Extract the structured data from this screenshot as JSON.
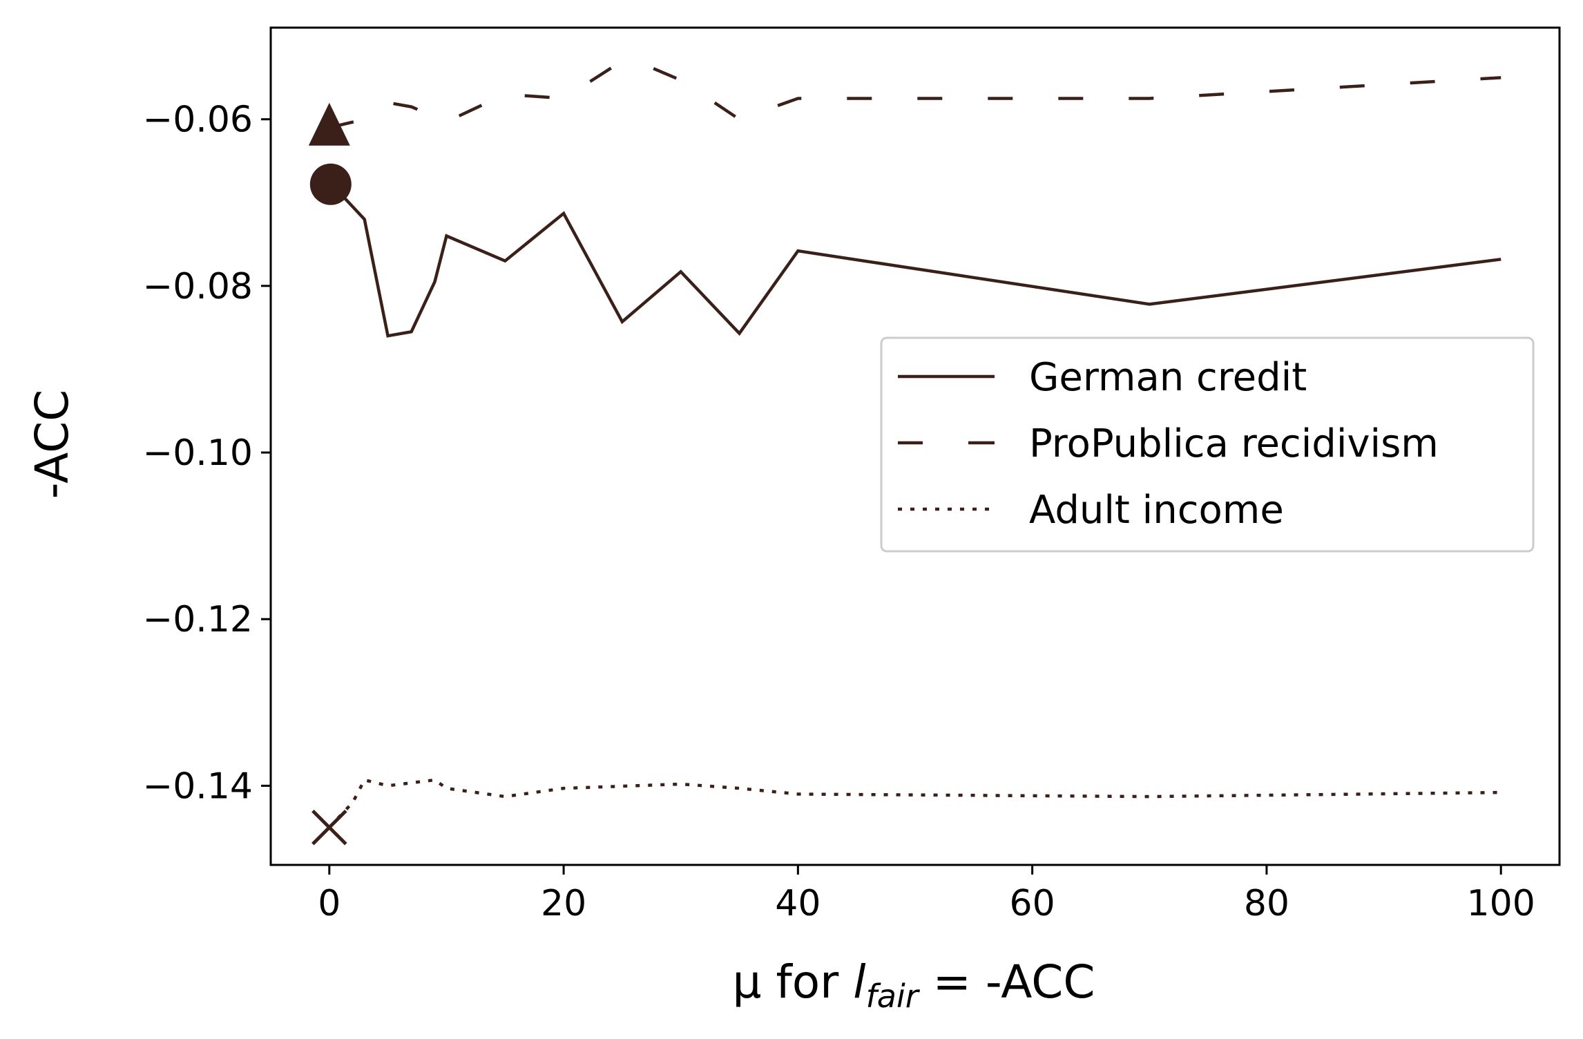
{
  "chart_data": {
    "type": "line",
    "xlabel_prefix": "μ for ",
    "xlabel_l": "l",
    "xlabel_sub": "fair",
    "xlabel_suffix": " = -ACC",
    "ylabel": "-ACC",
    "xlim": [
      -5,
      105
    ],
    "ylim": [
      -0.1495,
      -0.049
    ],
    "x_ticks": [
      0,
      20,
      40,
      60,
      80,
      100
    ],
    "x_tick_labels": [
      "0",
      "20",
      "40",
      "60",
      "80",
      "100"
    ],
    "y_ticks": [
      -0.06,
      -0.08,
      -0.1,
      -0.12,
      -0.14
    ],
    "y_tick_labels": [
      "−0.06",
      "−0.08",
      "−0.10",
      "−0.12",
      "−0.14"
    ],
    "grid": false,
    "legend_position": "center-right",
    "line_color": "#3a2018",
    "series": [
      {
        "name": "German credit",
        "style": "solid",
        "marker_at_start": "circle",
        "points": [
          [
            0,
            -0.0678
          ],
          [
            1,
            -0.069
          ],
          [
            3,
            -0.072
          ],
          [
            5,
            -0.086
          ],
          [
            7,
            -0.0855
          ],
          [
            9,
            -0.0795
          ],
          [
            10,
            -0.074
          ],
          [
            15,
            -0.077
          ],
          [
            20,
            -0.0713
          ],
          [
            25,
            -0.0843
          ],
          [
            30,
            -0.0783
          ],
          [
            35,
            -0.0857
          ],
          [
            40,
            -0.0758
          ],
          [
            70,
            -0.0822
          ],
          [
            100,
            -0.0768
          ]
        ]
      },
      {
        "name": "ProPublica recidivism",
        "style": "dashdot",
        "marker_at_start": "triangle",
        "points": [
          [
            0,
            -0.061
          ],
          [
            3,
            -0.06
          ],
          [
            5,
            -0.058
          ],
          [
            7,
            -0.0585
          ],
          [
            10,
            -0.0603
          ],
          [
            15,
            -0.057
          ],
          [
            20,
            -0.0575
          ],
          [
            25,
            -0.053
          ],
          [
            27,
            -0.0535
          ],
          [
            30,
            -0.0553
          ],
          [
            35,
            -0.06
          ],
          [
            40,
            -0.0575
          ],
          [
            70,
            -0.0575
          ],
          [
            100,
            -0.055
          ]
        ]
      },
      {
        "name": "Adult income",
        "style": "dotted",
        "marker_at_start": "x",
        "points": [
          [
            0,
            -0.145
          ],
          [
            2,
            -0.142
          ],
          [
            3,
            -0.1393
          ],
          [
            5,
            -0.14
          ],
          [
            9,
            -0.1393
          ],
          [
            10,
            -0.1403
          ],
          [
            15,
            -0.1413
          ],
          [
            20,
            -0.1403
          ],
          [
            30,
            -0.1398
          ],
          [
            35,
            -0.1403
          ],
          [
            40,
            -0.141
          ],
          [
            70,
            -0.1413
          ],
          [
            100,
            -0.1408
          ]
        ]
      }
    ]
  }
}
